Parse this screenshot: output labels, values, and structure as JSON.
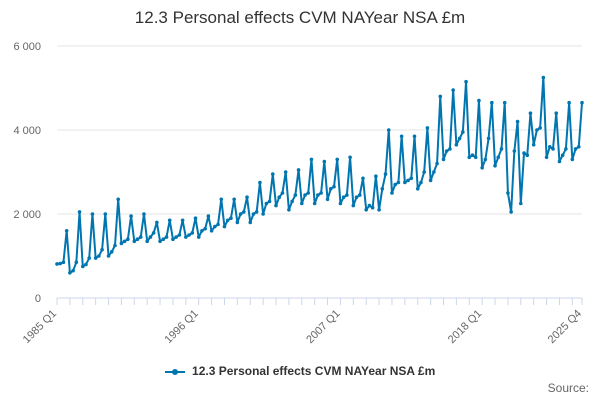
{
  "colors": {
    "series": "#0075b0",
    "grid": "#e6e6e6",
    "axis": "#ccd6eb"
  },
  "chart_data": {
    "type": "line",
    "title": "12.3 Personal effects CVM NAYear NSA £m",
    "xlabel": "",
    "ylabel": "",
    "ylim": [
      0,
      6000
    ],
    "yticks": [
      0,
      2000,
      4000,
      6000
    ],
    "ytick_labels": [
      "0",
      "2 000",
      "4 000",
      "6 000"
    ],
    "xtick_labels": [
      "1985 Q1",
      "1996 Q1",
      "2007 Q1",
      "2018 Q1",
      "2025 Q4"
    ],
    "x_start": "1985 Q1",
    "x_end": "2025 Q4",
    "grid": true,
    "legend_position": "bottom",
    "series": [
      {
        "name": "12.3 Personal effects CVM NAYear NSA £m",
        "values": [
          810,
          820,
          850,
          1600,
          600,
          650,
          850,
          2050,
          750,
          800,
          950,
          2000,
          950,
          1000,
          1150,
          2000,
          1000,
          1100,
          1250,
          2350,
          1300,
          1350,
          1400,
          1950,
          1350,
          1400,
          1450,
          2000,
          1350,
          1450,
          1550,
          1800,
          1350,
          1400,
          1450,
          1850,
          1400,
          1450,
          1500,
          1850,
          1450,
          1500,
          1550,
          1900,
          1450,
          1600,
          1650,
          1950,
          1600,
          1700,
          1750,
          2350,
          1700,
          1850,
          1900,
          2350,
          1800,
          2000,
          2050,
          2400,
          1800,
          2000,
          2050,
          2750,
          2000,
          2250,
          2300,
          2950,
          2200,
          2400,
          2500,
          3000,
          2100,
          2300,
          2450,
          3050,
          2250,
          2450,
          2500,
          3300,
          2250,
          2450,
          2500,
          3250,
          2350,
          2600,
          2650,
          3300,
          2250,
          2400,
          2450,
          3350,
          2200,
          2400,
          2450,
          2850,
          2100,
          2200,
          2150,
          2900,
          2100,
          2600,
          2950,
          4000,
          2500,
          2700,
          2750,
          3850,
          2750,
          2800,
          2850,
          3850,
          2600,
          2750,
          3000,
          4050,
          2800,
          3000,
          3200,
          4800,
          3300,
          3500,
          3550,
          4950,
          3650,
          3800,
          3950,
          5150,
          3350,
          3400,
          3350,
          4700,
          3100,
          3300,
          3800,
          4650,
          3150,
          3350,
          3550,
          4650,
          2500,
          2050,
          3500,
          4200,
          2250,
          3450,
          3400,
          4400,
          3650,
          4000,
          4050,
          5250,
          3350,
          3600,
          3550,
          4400,
          3250,
          3400,
          3550,
          4650,
          3300,
          3550,
          3600,
          4650
        ]
      }
    ]
  },
  "source_label": "Source:"
}
